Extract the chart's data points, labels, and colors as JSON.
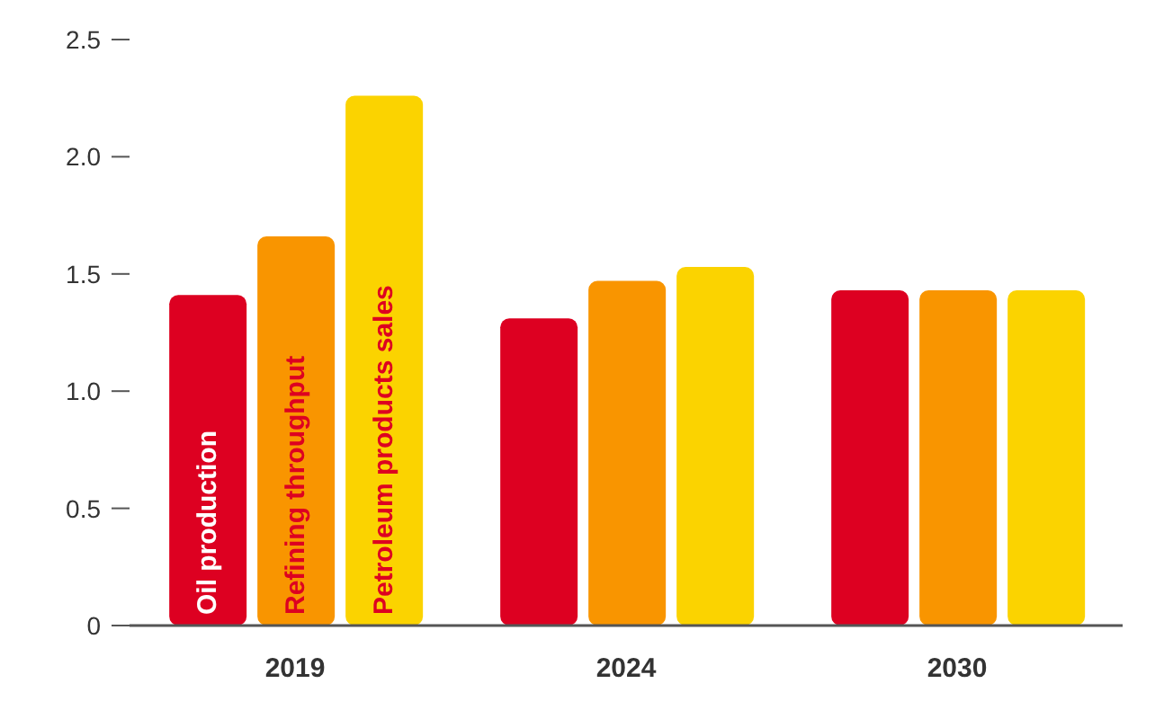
{
  "chart_data": {
    "type": "bar",
    "categories": [
      "2019",
      "2024",
      "2030"
    ],
    "series": [
      {
        "name": "Oil production",
        "color": "#dd0021",
        "values": [
          1.41,
          1.31,
          1.43
        ]
      },
      {
        "name": "Refining throughput",
        "color": "#f99500",
        "values": [
          1.66,
          1.47,
          1.43
        ]
      },
      {
        "name": "Petroleum products sales",
        "color": "#fbd300",
        "values": [
          2.26,
          1.53,
          1.43
        ]
      }
    ],
    "ylim": [
      0,
      2.5
    ],
    "yticks": [
      {
        "value": 0,
        "label": "0"
      },
      0.5,
      {
        "value": 1,
        "label": "1.0"
      },
      1.5,
      {
        "value": 2,
        "label": "2.0"
      },
      2.5
    ],
    "grid": false,
    "legend": false
  }
}
